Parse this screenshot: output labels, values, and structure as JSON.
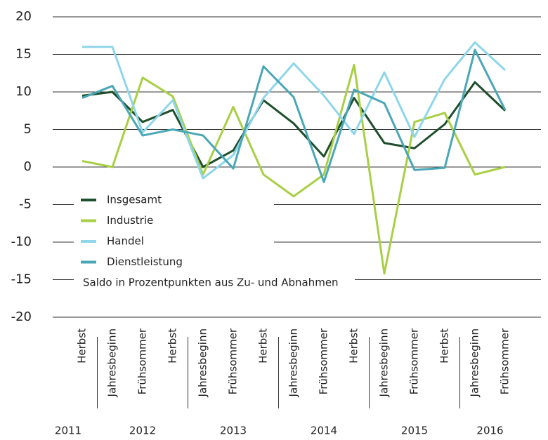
{
  "chart_data": {
    "type": "line",
    "categories": [
      "Herbst",
      "Jahresbeginn",
      "Frühsommer",
      "Herbst",
      "Jahresbeginn",
      "Frühsommer",
      "Herbst",
      "Jahresbeginn",
      "Frühsommer",
      "Herbst",
      "Jahresbeginn",
      "Frühsommer",
      "Herbst",
      "Jahresbeginn",
      "Frühsommer"
    ],
    "year_groups": [
      {
        "label": "2011",
        "count": 1
      },
      {
        "label": "2012",
        "count": 3
      },
      {
        "label": "2013",
        "count": 3
      },
      {
        "label": "2014",
        "count": 3
      },
      {
        "label": "2015",
        "count": 3
      },
      {
        "label": "2016",
        "count": 2
      }
    ],
    "series": [
      {
        "name": "Insgesamt",
        "color": "#1f4e2c",
        "values": [
          9.5,
          10,
          6,
          7.6,
          0,
          2.2,
          8.9,
          5.8,
          1.4,
          9.2,
          3.2,
          2.5,
          5.7,
          11.3,
          7.5
        ]
      },
      {
        "name": "Industrie",
        "color": "#a8cf45",
        "values": [
          0.8,
          0,
          11.9,
          9.4,
          -1,
          8,
          -1,
          -3.9,
          -1,
          13.6,
          -14.2,
          6,
          7.2,
          -1,
          0
        ]
      },
      {
        "name": "Handel",
        "color": "#8ed6ea",
        "values": [
          16,
          16,
          4.6,
          8.9,
          -1.5,
          1.6,
          9.2,
          13.8,
          9.5,
          4.4,
          12.6,
          4,
          11.7,
          16.6,
          12.9
        ]
      },
      {
        "name": "Dienstleistung",
        "color": "#4aa7b5",
        "values": [
          9.2,
          10.8,
          4.2,
          5,
          4.2,
          -0.2,
          13.4,
          9.3,
          -2,
          10.3,
          8.5,
          -0.4,
          -0.1,
          15.6,
          7.6
        ]
      }
    ],
    "note": "Saldo in Prozentpunkten aus Zu- und Abnahmen",
    "ylim": [
      -20,
      20
    ],
    "yticks": [
      20,
      15,
      10,
      5,
      0,
      -5,
      -10,
      -15,
      -20
    ],
    "grid": true
  }
}
